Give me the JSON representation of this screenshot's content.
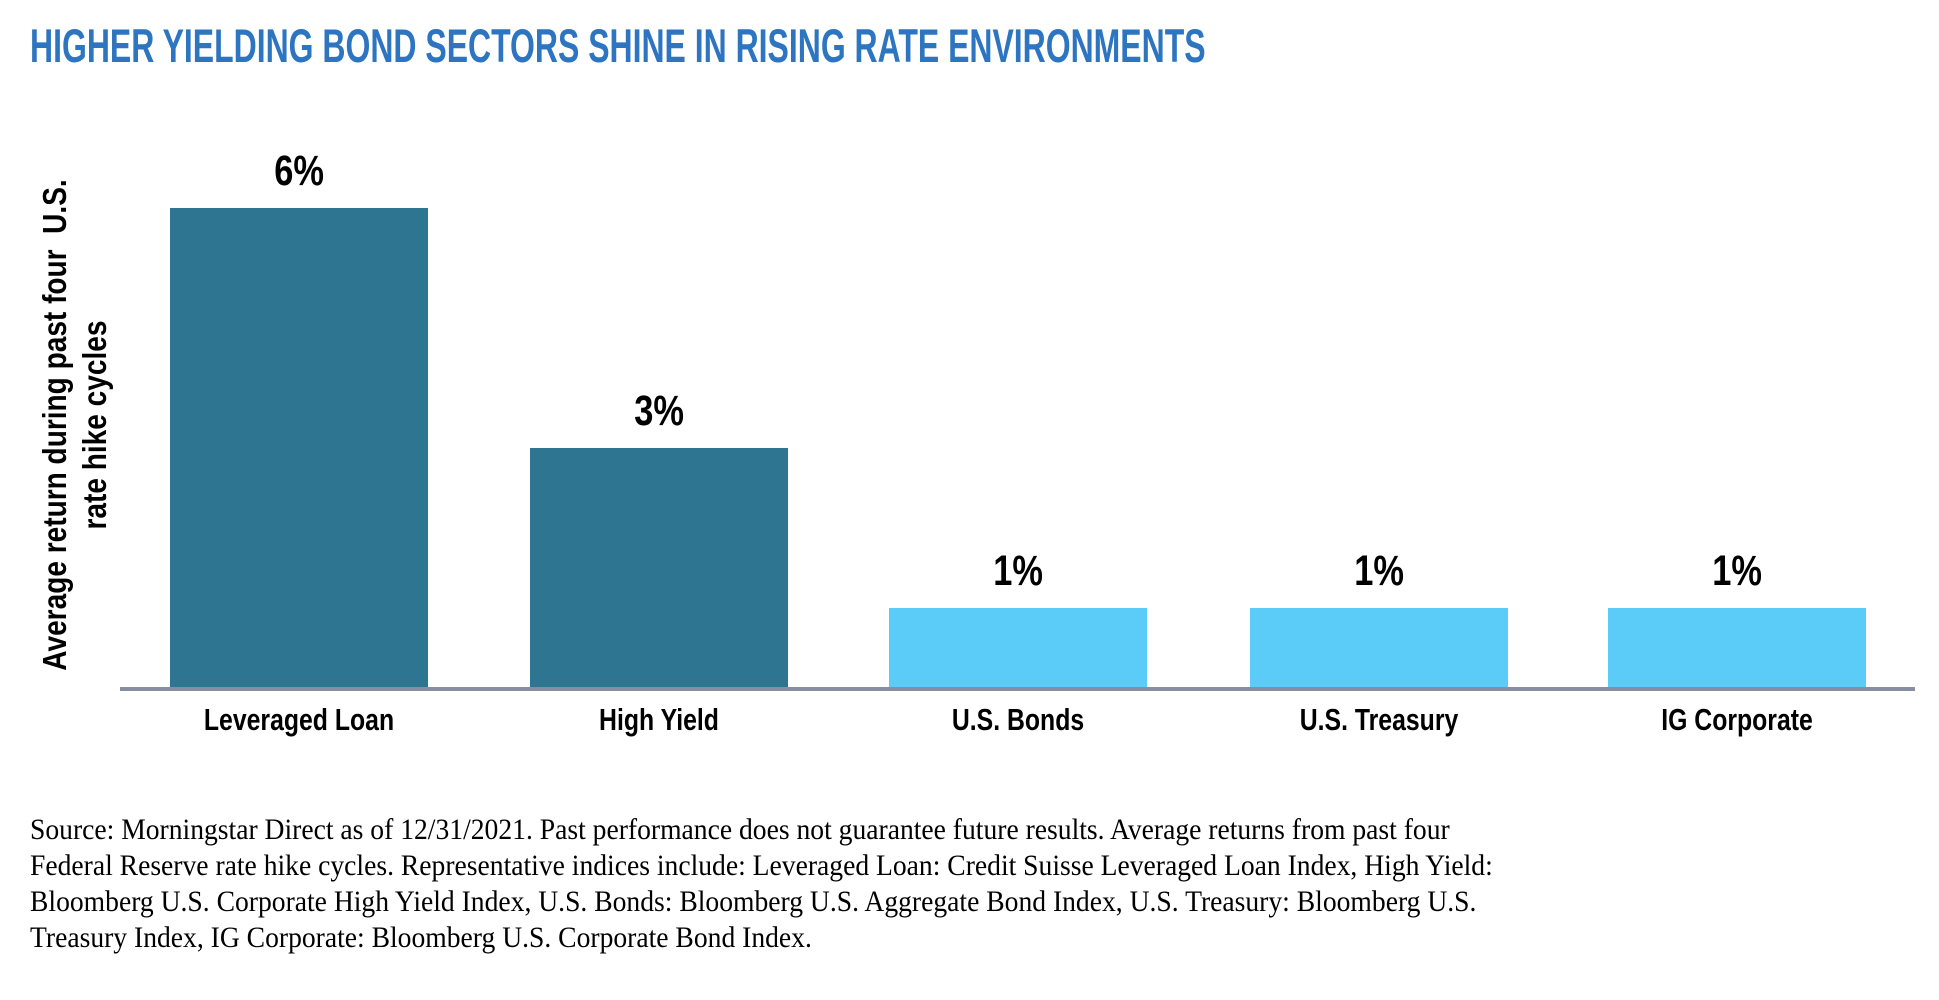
{
  "title": "HIGHER YIELDING BOND SECTORS SHINE IN RISING RATE ENVIRONMENTS",
  "colors": {
    "title_blue": "#2E75C1",
    "bar_teal": "#2D7590",
    "bar_light_blue": "#5BCCF7",
    "axis_line_gray": "#898DA0",
    "text_black": "#000000"
  },
  "y_axis": {
    "label_line1": "Average return during past four  U.S.",
    "label_line2": "rate hike cycles"
  },
  "chart_data": {
    "type": "bar",
    "title": "HIGHER YIELDING BOND SECTORS SHINE IN RISING RATE ENVIRONMENTS",
    "xlabel": "",
    "ylabel": "Average return during past four U.S. rate hike cycles",
    "unit": "percent",
    "ylim": [
      0,
      7
    ],
    "grid": false,
    "legend": "none",
    "categories": [
      "Leveraged Loan",
      "High Yield",
      "U.S. Bonds",
      "U.S. Treasury",
      "IG Corporate"
    ],
    "values": [
      6,
      3,
      1,
      1,
      1
    ],
    "bars": [
      {
        "category": "Leveraged Loan",
        "value": 6,
        "value_label": "6%",
        "color": "#2D7590"
      },
      {
        "category": "High Yield",
        "value": 3,
        "value_label": "3%",
        "color": "#2D7590"
      },
      {
        "category": "U.S. Bonds",
        "value": 1,
        "value_label": "1%",
        "color": "#5BCCF7"
      },
      {
        "category": "U.S. Treasury",
        "value": 1,
        "value_label": "1%",
        "color": "#5BCCF7"
      },
      {
        "category": "IG Corporate",
        "value": 1,
        "value_label": "1%",
        "color": "#5BCCF7"
      }
    ],
    "pixels_per_unit": 80
  },
  "source_note": "Source: Morningstar Direct as of 12/31/2021. Past performance does not guarantee future results. Average returns from past four Federal Reserve rate hike cycles. Representative indices include: Leveraged Loan: Credit Suisse Leveraged Loan Index, High Yield: Bloomberg U.S. Corporate High Yield Index, U.S. Bonds: Bloomberg U.S. Aggregate Bond Index, U.S. Treasury: Bloomberg U.S. Treasury Index, IG Corporate: Bloomberg U.S. Corporate Bond Index."
}
